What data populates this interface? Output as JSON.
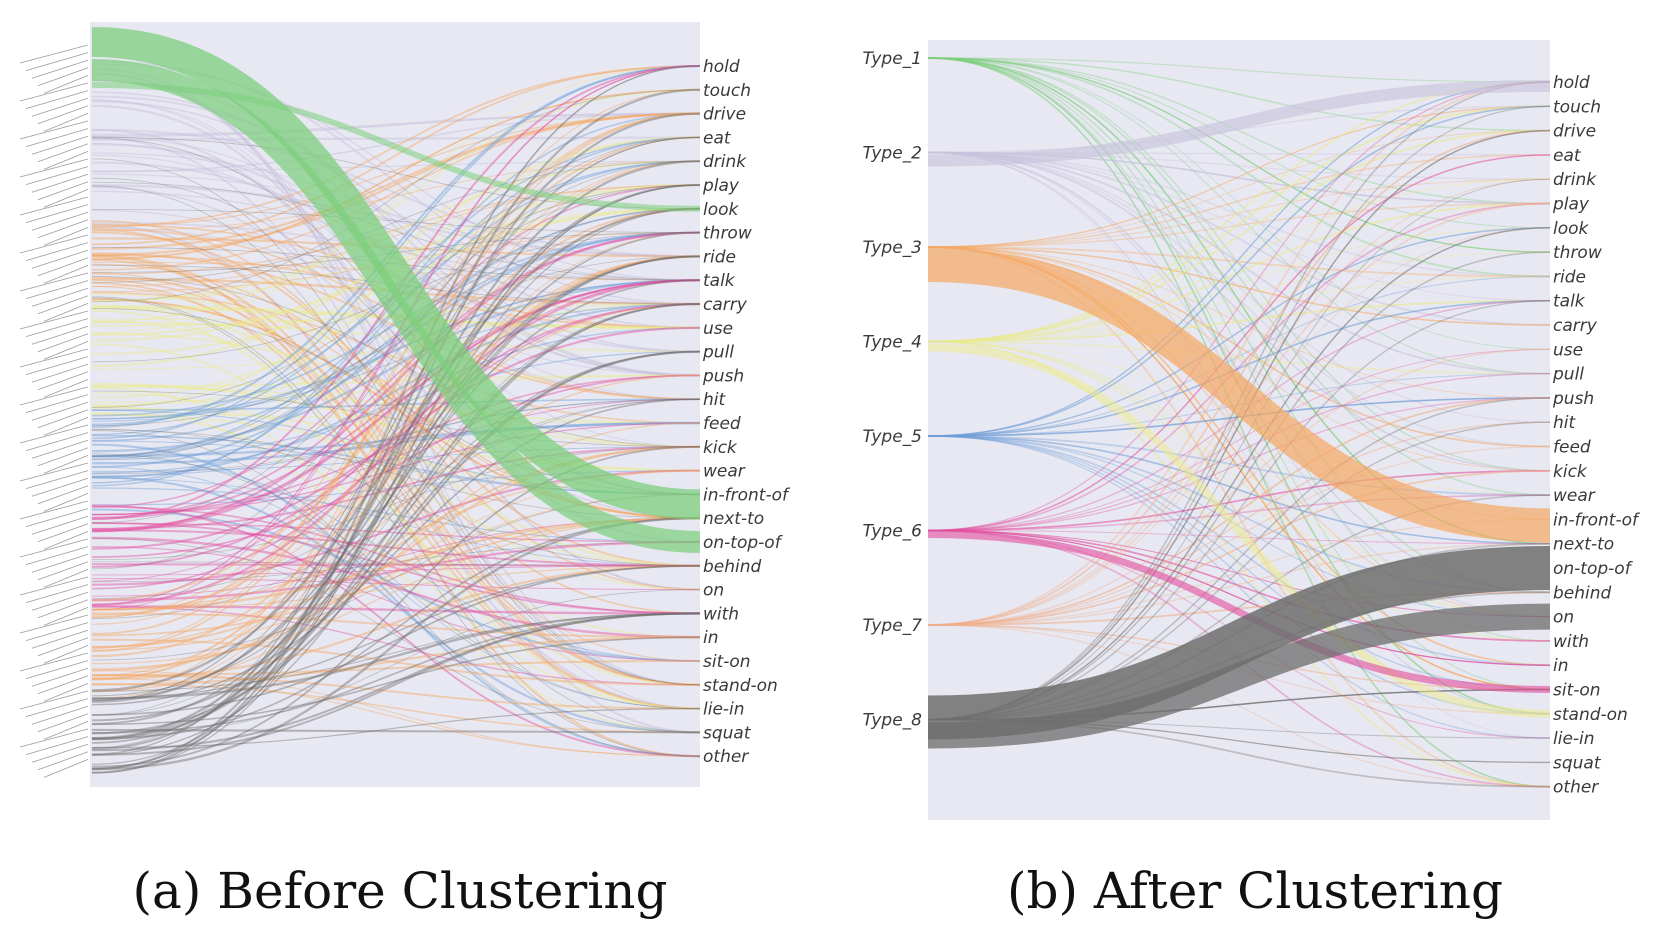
{
  "panels": [
    {
      "id": "a",
      "caption": "(a) Before Clustering",
      "right_labels": [
        "hold",
        "touch",
        "drive",
        "eat",
        "drink",
        "play",
        "look",
        "throw",
        "ride",
        "talk",
        "carry",
        "use",
        "pull",
        "push",
        "hit",
        "feed",
        "kick",
        "wear",
        "in-front-of",
        "next-to",
        "on-top-of",
        "behind",
        "on",
        "with",
        "in",
        "sit-on",
        "stand-on",
        "lie-in",
        "squat",
        "other"
      ]
    },
    {
      "id": "b",
      "caption": "(b) After Clustering",
      "left_labels": [
        "Type_1",
        "Type_2",
        "Type_3",
        "Type_4",
        "Type_5",
        "Type_6",
        "Type_7",
        "Type_8"
      ],
      "right_labels": [
        "hold",
        "touch",
        "drive",
        "eat",
        "drink",
        "play",
        "look",
        "throw",
        "ride",
        "talk",
        "carry",
        "use",
        "pull",
        "push",
        "hit",
        "feed",
        "kick",
        "wear",
        "in-front-of",
        "next-to",
        "on-top-of",
        "behind",
        "on",
        "with",
        "in",
        "sit-on",
        "stand-on",
        "lie-in",
        "squat",
        "other"
      ]
    }
  ],
  "colors": {
    "panel_bg": "#e8e8f2",
    "type_colors": [
      "#7ccf7c",
      "#c8c2dc",
      "#f5a864",
      "#ecec8a",
      "#6f9fd6",
      "#e34d9f",
      "#f0b08a",
      "#6e6e6e"
    ]
  }
}
